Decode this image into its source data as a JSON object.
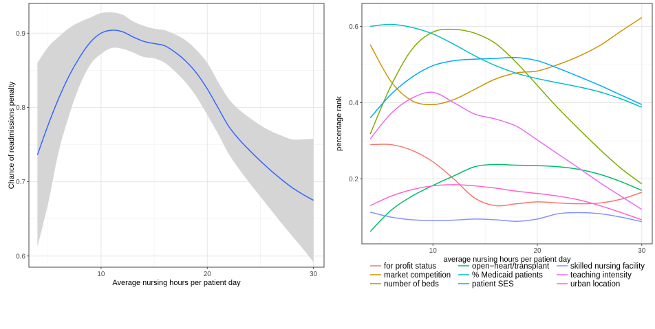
{
  "chart_data": [
    {
      "type": "line",
      "xlabel": "Average nursing hours per patient day",
      "ylabel": "Chance of readmissions penalty",
      "xlim": [
        3.2,
        31
      ],
      "ylim": [
        0.585,
        0.94
      ],
      "x_ticks": [
        10,
        20,
        30
      ],
      "y_ticks": [
        0.6,
        0.7,
        0.8,
        0.9
      ],
      "grid": true,
      "line_color": "#3366FF",
      "band_color": "#D3D3D3",
      "series": [
        {
          "x": [
            4,
            5,
            6,
            7,
            8,
            9,
            10,
            11,
            12,
            13,
            14,
            15,
            16,
            17,
            18,
            19,
            20,
            21,
            22,
            23,
            24,
            25,
            26,
            27,
            28,
            29,
            30
          ],
          "y": [
            0.736,
            0.776,
            0.812,
            0.843,
            0.868,
            0.888,
            0.9,
            0.904,
            0.902,
            0.895,
            0.889,
            0.886,
            0.883,
            0.874,
            0.862,
            0.846,
            0.825,
            0.8,
            0.775,
            0.757,
            0.742,
            0.728,
            0.715,
            0.703,
            0.692,
            0.683,
            0.675
          ],
          "ymin": [
            0.612,
            0.67,
            0.74,
            0.79,
            0.83,
            0.858,
            0.872,
            0.88,
            0.879,
            0.874,
            0.868,
            0.866,
            0.86,
            0.848,
            0.833,
            0.814,
            0.79,
            0.765,
            0.738,
            0.717,
            0.698,
            0.68,
            0.662,
            0.644,
            0.627,
            0.61,
            0.592
          ],
          "ymax": [
            0.86,
            0.881,
            0.895,
            0.907,
            0.915,
            0.921,
            0.927,
            0.928,
            0.925,
            0.916,
            0.91,
            0.906,
            0.904,
            0.898,
            0.89,
            0.877,
            0.86,
            0.835,
            0.812,
            0.797,
            0.786,
            0.776,
            0.768,
            0.762,
            0.757,
            0.757,
            0.758
          ]
        }
      ]
    },
    {
      "type": "line",
      "xlabel": "average nursing hours per patient day",
      "ylabel": "percentage rank",
      "xlim": [
        3.2,
        31
      ],
      "ylim": [
        0.03,
        0.66
      ],
      "x_ticks": [
        10,
        20,
        30
      ],
      "y_ticks": [
        0.2,
        0.4,
        0.6
      ],
      "grid": true,
      "legend_position": "bottom",
      "x": [
        4,
        6,
        8,
        10,
        12,
        14,
        16,
        18,
        20,
        22,
        24,
        26,
        28,
        30
      ],
      "series": [
        {
          "name": "for profit status",
          "color": "#F8766D",
          "values": [
            0.29,
            0.29,
            0.275,
            0.245,
            0.2,
            0.15,
            0.13,
            0.135,
            0.14,
            0.137,
            0.135,
            0.137,
            0.147,
            0.165
          ]
        },
        {
          "name": "market competition",
          "color": "#CD9600",
          "values": [
            0.552,
            0.455,
            0.405,
            0.395,
            0.408,
            0.435,
            0.462,
            0.478,
            0.483,
            0.5,
            0.522,
            0.55,
            0.587,
            0.623
          ]
        },
        {
          "name": "number of beds",
          "color": "#7CAE00",
          "values": [
            0.318,
            0.445,
            0.54,
            0.585,
            0.592,
            0.582,
            0.555,
            0.505,
            0.445,
            0.385,
            0.33,
            0.277,
            0.228,
            0.187
          ]
        },
        {
          "name": "open−heart/transplant",
          "color": "#00BE67",
          "values": [
            0.062,
            0.118,
            0.155,
            0.183,
            0.208,
            0.232,
            0.238,
            0.236,
            0.235,
            0.232,
            0.225,
            0.212,
            0.193,
            0.17
          ]
        },
        {
          "name": "% Medicaid patients",
          "color": "#00BFC4",
          "values": [
            0.6,
            0.605,
            0.597,
            0.58,
            0.553,
            0.523,
            0.497,
            0.477,
            0.463,
            0.452,
            0.441,
            0.428,
            0.41,
            0.388
          ]
        },
        {
          "name": "patient SES",
          "color": "#00A9FF",
          "values": [
            0.36,
            0.422,
            0.467,
            0.497,
            0.51,
            0.514,
            0.516,
            0.518,
            0.51,
            0.49,
            0.468,
            0.445,
            0.42,
            0.395
          ]
        },
        {
          "name": "skilled nursing facility",
          "color": "#8494FF",
          "values": [
            0.113,
            0.1,
            0.093,
            0.091,
            0.092,
            0.095,
            0.093,
            0.089,
            0.095,
            0.109,
            0.112,
            0.109,
            0.1,
            0.088
          ]
        },
        {
          "name": "teaching intensity",
          "color": "#E76BF3",
          "values": [
            0.305,
            0.372,
            0.412,
            0.427,
            0.4,
            0.37,
            0.357,
            0.338,
            0.302,
            0.265,
            0.228,
            0.19,
            0.155,
            0.12
          ]
        },
        {
          "name": "urban location",
          "color": "#FF61CC",
          "values": [
            0.13,
            0.155,
            0.172,
            0.182,
            0.185,
            0.182,
            0.176,
            0.168,
            0.162,
            0.155,
            0.145,
            0.13,
            0.112,
            0.093
          ]
        }
      ]
    }
  ]
}
